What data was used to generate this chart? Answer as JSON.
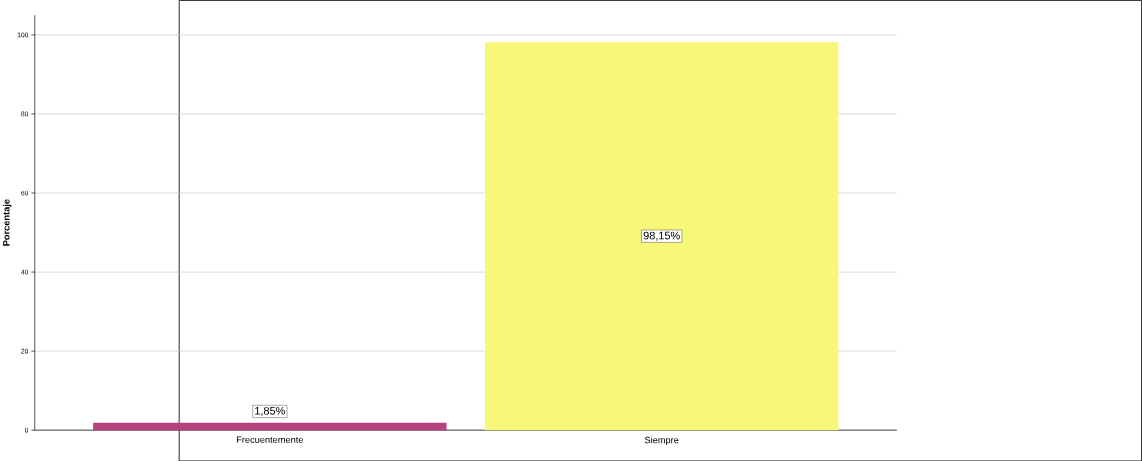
{
  "chart_data": {
    "type": "bar",
    "ylabel": "Porcentaje",
    "categories": [
      "Frecuentemente",
      "Siempre"
    ],
    "values": [
      1.85,
      98.15
    ],
    "colors": [
      "#b5417f",
      "#f7f77a"
    ],
    "value_labels": [
      "1,85%",
      "98,15%"
    ],
    "ylim": [
      0,
      105
    ],
    "yticks": [
      0,
      20,
      40,
      60,
      80,
      100
    ],
    "grid": "y"
  }
}
